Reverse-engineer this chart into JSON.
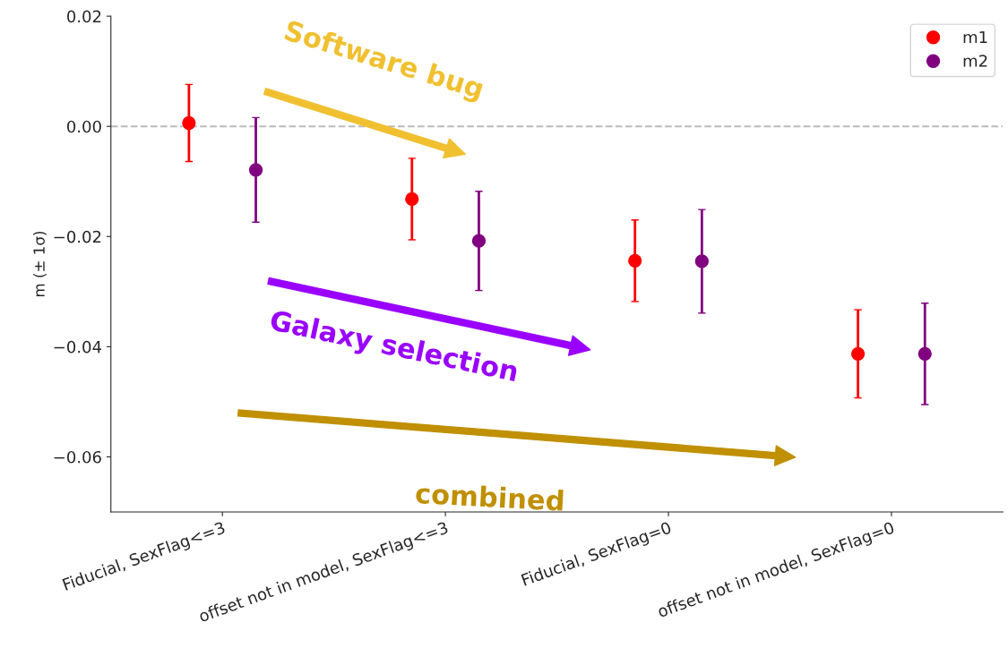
{
  "chart_data": {
    "type": "scatter",
    "ylabel": "m (± 1σ)",
    "categories": [
      "Fiducial, SexFlag<=3",
      "offset not in model, SexFlag<=3",
      "Fiducial, SexFlag=0",
      "offset not in model, SexFlag=0"
    ],
    "series": [
      {
        "name": "m1",
        "color": "#ff0000",
        "values": [
          0.0006,
          -0.0132,
          -0.0244,
          -0.0413
        ],
        "errors": [
          0.007,
          0.0074,
          0.0074,
          0.008
        ]
      },
      {
        "name": "m2",
        "color": "#800080",
        "values": [
          -0.0079,
          -0.0208,
          -0.0245,
          -0.0413
        ],
        "errors": [
          0.0095,
          0.009,
          0.0094,
          0.0092
        ]
      }
    ],
    "ylim": [
      -0.07,
      0.02
    ],
    "yticks": [
      {
        "value": 0.02,
        "label": "0.02"
      },
      {
        "value": 0.0,
        "label": "0.00"
      },
      {
        "value": -0.02,
        "label": "−0.02"
      },
      {
        "value": -0.04,
        "label": "−0.04"
      },
      {
        "value": -0.06,
        "label": "−0.06"
      }
    ],
    "ref_lines": [
      {
        "axis": "y",
        "value": 0,
        "color": "#bbbbbb",
        "line_style": "dashed"
      }
    ],
    "annotations": [
      "Software bug",
      "Galaxy selection",
      "combined"
    ],
    "legend": "top right",
    "marker": "circle",
    "grid": false
  }
}
